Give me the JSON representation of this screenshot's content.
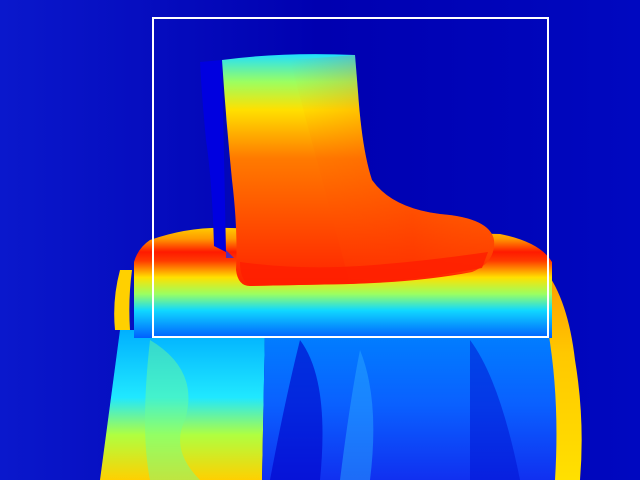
{
  "image": {
    "kind": "depth-map-visualization",
    "colormap": "jet",
    "subject": "boot-on-pedestal",
    "annotation": "bounding-box",
    "colors": {
      "background": "#0000b4",
      "background_light": "#0a14c8",
      "near": "#ff2a00",
      "mid": "#ffd000",
      "far": "#00a8ff",
      "box_stroke": "#ffffff"
    }
  }
}
